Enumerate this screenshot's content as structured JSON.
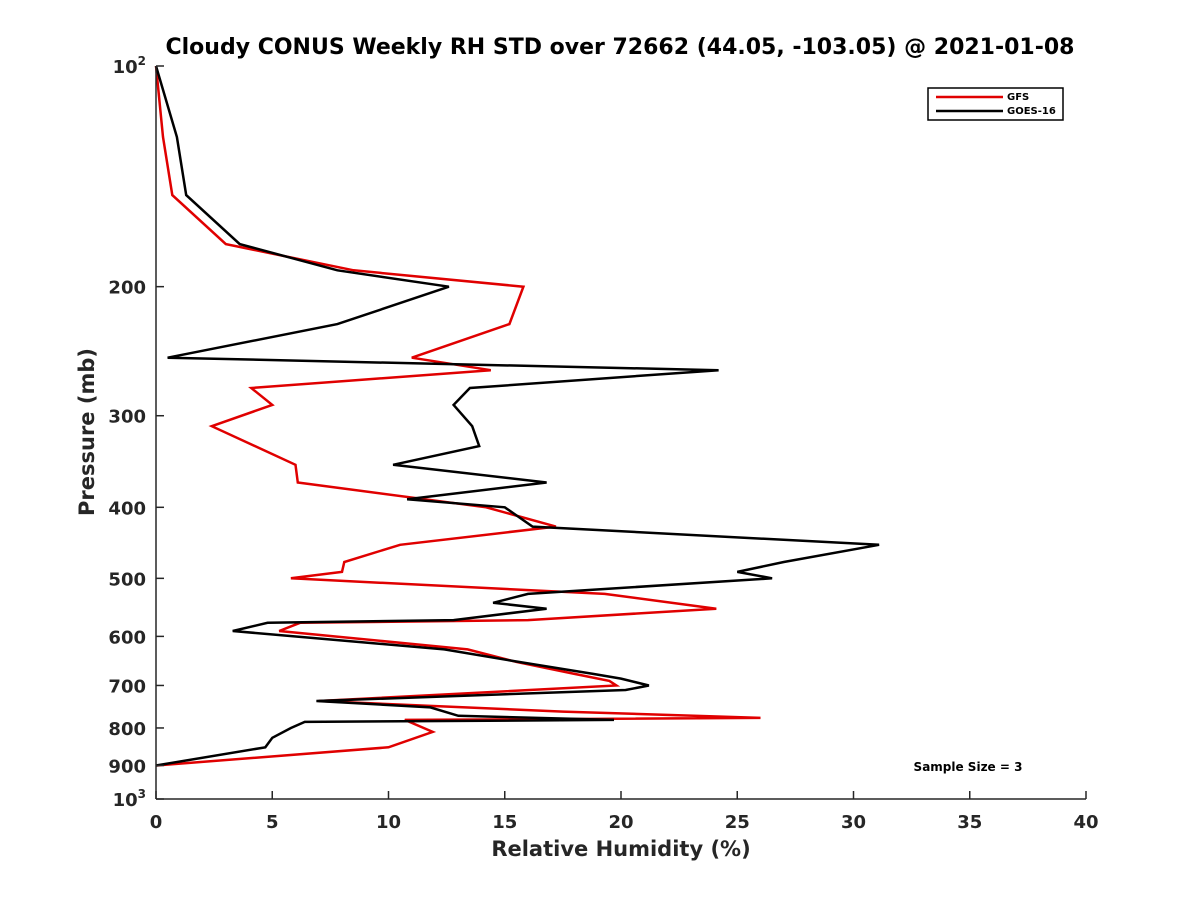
{
  "chart_data": {
    "type": "line",
    "title": "Cloudy CONUS Weekly RH STD over 72662 (44.05, -103.05) @ 2021-01-08",
    "xlabel": "Relative Humidity (%)",
    "ylabel": "Pressure (mb)",
    "xlim": [
      0,
      40
    ],
    "ylim": [
      100,
      1000
    ],
    "y_scale": "log",
    "y_reversed": true,
    "grid": false,
    "legend_position": "top-right",
    "x_ticks": [
      0,
      5,
      10,
      15,
      20,
      25,
      30,
      35,
      40
    ],
    "y_ticks": [
      {
        "value": 100,
        "base": "10",
        "exp": "2"
      },
      {
        "value": 200,
        "label": "200"
      },
      {
        "value": 300,
        "label": "300"
      },
      {
        "value": 400,
        "label": "400"
      },
      {
        "value": 500,
        "label": "500"
      },
      {
        "value": 600,
        "label": "600"
      },
      {
        "value": 700,
        "label": "700"
      },
      {
        "value": 800,
        "label": "800"
      },
      {
        "value": 900,
        "label": "900"
      },
      {
        "value": 1000,
        "base": "10",
        "exp": "3"
      }
    ],
    "series": [
      {
        "name": "GFS",
        "color": "#e00000",
        "points": [
          [
            0.0,
            100
          ],
          [
            0.3,
            125
          ],
          [
            0.7,
            150
          ],
          [
            3.0,
            175
          ],
          [
            8.5,
            190
          ],
          [
            15.8,
            200
          ],
          [
            15.2,
            225
          ],
          [
            11.0,
            250
          ],
          [
            14.4,
            260
          ],
          [
            4.1,
            275
          ],
          [
            5.0,
            290
          ],
          [
            2.4,
            310
          ],
          [
            6.0,
            350
          ],
          [
            6.1,
            370
          ],
          [
            14.2,
            400
          ],
          [
            17.2,
            425
          ],
          [
            10.5,
            450
          ],
          [
            8.1,
            475
          ],
          [
            8.0,
            490
          ],
          [
            5.8,
            500
          ],
          [
            19.3,
            525
          ],
          [
            24.1,
            550
          ],
          [
            16.0,
            570
          ],
          [
            6.2,
            575
          ],
          [
            5.3,
            590
          ],
          [
            13.4,
            625
          ],
          [
            15.5,
            650
          ],
          [
            18.0,
            675
          ],
          [
            19.5,
            690
          ],
          [
            19.8,
            700
          ],
          [
            7.0,
            735
          ],
          [
            17.5,
            760
          ],
          [
            26.0,
            775
          ],
          [
            10.7,
            780
          ],
          [
            11.9,
            810
          ],
          [
            10.0,
            850
          ],
          [
            0.0,
            900
          ]
        ]
      },
      {
        "name": "GOES-16",
        "color": "#000000",
        "points": [
          [
            0.0,
            100
          ],
          [
            0.9,
            125
          ],
          [
            1.3,
            150
          ],
          [
            3.6,
            175
          ],
          [
            7.8,
            190
          ],
          [
            12.6,
            200
          ],
          [
            7.8,
            225
          ],
          [
            0.5,
            250
          ],
          [
            24.2,
            260
          ],
          [
            13.5,
            275
          ],
          [
            12.8,
            290
          ],
          [
            13.6,
            310
          ],
          [
            13.9,
            330
          ],
          [
            10.2,
            350
          ],
          [
            16.8,
            370
          ],
          [
            10.8,
            390
          ],
          [
            15.0,
            400
          ],
          [
            16.2,
            425
          ],
          [
            31.1,
            450
          ],
          [
            27.0,
            475
          ],
          [
            25.0,
            490
          ],
          [
            26.5,
            500
          ],
          [
            16.0,
            525
          ],
          [
            14.5,
            540
          ],
          [
            16.8,
            550
          ],
          [
            12.8,
            570
          ],
          [
            4.8,
            575
          ],
          [
            3.3,
            590
          ],
          [
            12.4,
            625
          ],
          [
            15.6,
            650
          ],
          [
            18.8,
            675
          ],
          [
            20.0,
            685
          ],
          [
            21.2,
            700
          ],
          [
            20.2,
            710
          ],
          [
            6.9,
            735
          ],
          [
            11.8,
            750
          ],
          [
            13.0,
            770
          ],
          [
            19.7,
            780
          ],
          [
            6.4,
            785
          ],
          [
            5.8,
            800
          ],
          [
            5.0,
            825
          ],
          [
            4.7,
            850
          ],
          [
            0.0,
            900
          ]
        ]
      }
    ],
    "annotation": "Sample Size = 3"
  }
}
